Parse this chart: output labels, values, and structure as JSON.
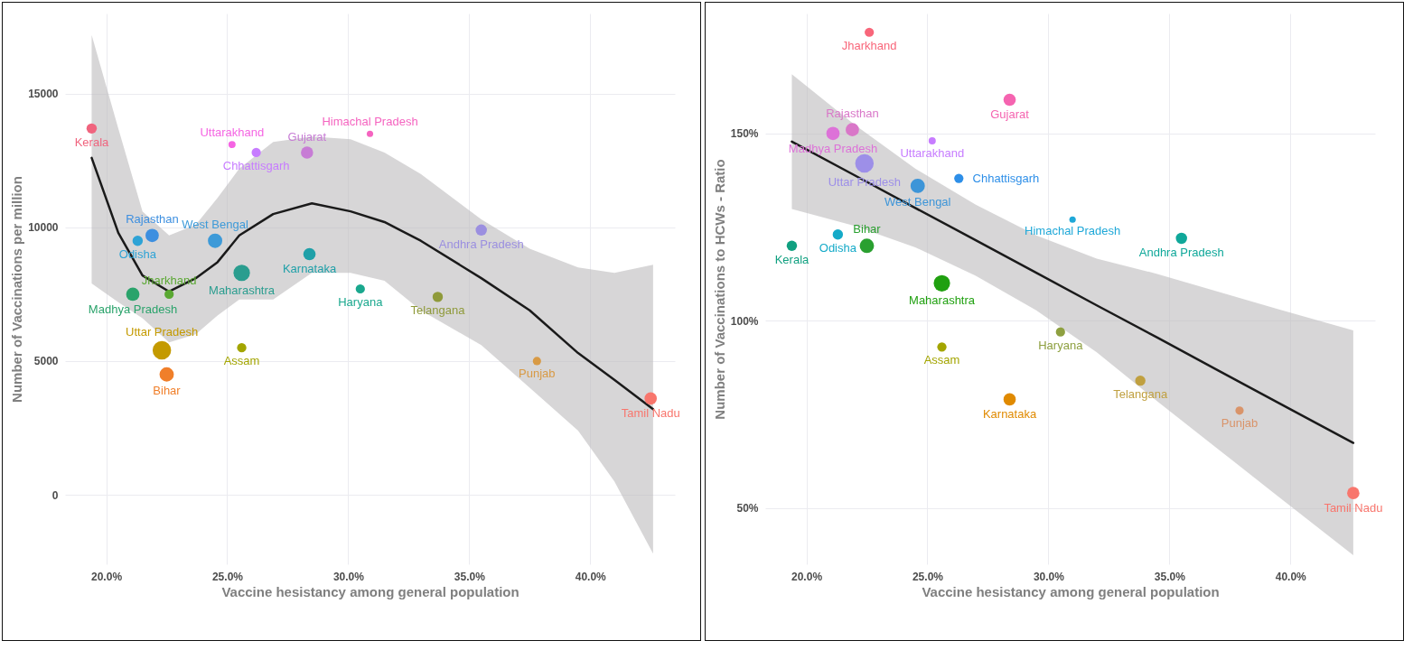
{
  "chart_data": [
    {
      "type": "bubble",
      "xlabel": "Vaccine hesistancy among general population",
      "ylabel": "Number of Vaccinations per million",
      "xlim": [
        18.3,
        43.5
      ],
      "ylim": [
        -2600,
        18000
      ],
      "xticks": [
        {
          "value": 20,
          "label": "20.0%"
        },
        {
          "value": 25,
          "label": "25.0%"
        },
        {
          "value": 30,
          "label": "30.0%"
        },
        {
          "value": 35,
          "label": "35.0%"
        },
        {
          "value": 40,
          "label": "40.0%"
        }
      ],
      "yticks": [
        0,
        5000,
        10000,
        15000
      ],
      "grid": true,
      "marker": "circle",
      "series": [
        {
          "name": "Kerala",
          "color": "#f0647e",
          "x": [
            19.4
          ],
          "values": [
            13700
          ],
          "sizes": [
            0.31
          ]
        },
        {
          "name": "Uttarakhand",
          "color": "#f564e3",
          "x": [
            25.2
          ],
          "values": [
            13100
          ],
          "sizes": [
            0.15
          ]
        },
        {
          "name": "Chhattisgarh",
          "color": "#c77cff",
          "x": [
            26.2
          ],
          "values": [
            12800
          ],
          "sizes": [
            0.25
          ]
        },
        {
          "name": "Gujarat",
          "color": "#c77cd5",
          "x": [
            28.3
          ],
          "values": [
            12800
          ],
          "sizes": [
            0.44
          ]
        },
        {
          "name": "Himachal Pradesh",
          "color": "#f564c0",
          "x": [
            30.9
          ],
          "values": [
            13500
          ],
          "sizes": [
            0.12
          ]
        },
        {
          "name": "Rajasthan",
          "color": "#3d8fe0",
          "x": [
            21.9
          ],
          "values": [
            9700
          ],
          "sizes": [
            0.52
          ]
        },
        {
          "name": "Odisha",
          "color": "#2ea3d6",
          "x": [
            21.3
          ],
          "values": [
            9500
          ],
          "sizes": [
            0.31
          ]
        },
        {
          "name": "West Bengal",
          "color": "#3d9ad8",
          "x": [
            24.5
          ],
          "values": [
            9500
          ],
          "sizes": [
            0.6
          ]
        },
        {
          "name": "Karnataka",
          "color": "#1fa0a8",
          "x": [
            28.4
          ],
          "values": [
            9000
          ],
          "sizes": [
            0.44
          ]
        },
        {
          "name": "Andhra Pradesh",
          "color": "#9b8fe0",
          "x": [
            35.5
          ],
          "values": [
            9900
          ],
          "sizes": [
            0.37
          ]
        },
        {
          "name": "Maharashtra",
          "color": "#2a9d8f",
          "x": [
            25.6
          ],
          "values": [
            8300
          ],
          "sizes": [
            0.79
          ]
        },
        {
          "name": "Madhya Pradesh",
          "color": "#2aa36b",
          "x": [
            21.1
          ],
          "values": [
            7500
          ],
          "sizes": [
            0.52
          ]
        },
        {
          "name": "Jharkhand",
          "color": "#5aa832",
          "x": [
            22.6
          ],
          "values": [
            7500
          ],
          "sizes": [
            0.25
          ]
        },
        {
          "name": "Haryana",
          "color": "#1aa88e",
          "x": [
            30.5
          ],
          "values": [
            7700
          ],
          "sizes": [
            0.25
          ]
        },
        {
          "name": "Telangana",
          "color": "#8f9a3a",
          "x": [
            33.7
          ],
          "values": [
            7400
          ],
          "sizes": [
            0.31
          ]
        },
        {
          "name": "Uttar Pradesh",
          "color": "#c49a00",
          "x": [
            22.3
          ],
          "values": [
            5400
          ],
          "sizes": [
            1
          ]
        },
        {
          "name": "Assam",
          "color": "#a3a500",
          "x": [
            25.6
          ],
          "values": [
            5500
          ],
          "sizes": [
            0.25
          ]
        },
        {
          "name": "Bihar",
          "color": "#f07f2a",
          "x": [
            22.5
          ],
          "values": [
            4500
          ],
          "sizes": [
            0.6
          ]
        },
        {
          "name": "Punjab",
          "color": "#d89a45",
          "x": [
            37.8
          ],
          "values": [
            5000
          ],
          "sizes": [
            0.2
          ]
        },
        {
          "name": "Tamil Nadu",
          "color": "#f8766d",
          "x": [
            42.5
          ],
          "values": [
            3600
          ],
          "sizes": [
            0.44
          ]
        },
        {
          "type": "line",
          "marker": "none",
          "color": "#1a1a1a",
          "x": [
            19.4,
            20.5,
            21.5,
            22.6,
            23.7,
            24.6,
            25.5,
            26.9,
            28.5,
            30.1,
            31.5,
            33.0,
            35.5,
            37.5,
            39.5,
            41,
            42.6
          ],
          "values": [
            12600,
            9800,
            8200,
            7600,
            8100,
            8700,
            9700,
            10500,
            10900,
            10600,
            10200,
            9500,
            8100,
            6900,
            5300,
            4300,
            3200
          ],
          "lower": [
            7900,
            7200,
            6600,
            5700,
            6000,
            6700,
            7300,
            7300,
            8300,
            8300,
            8000,
            6900,
            5600,
            4000,
            2400,
            500,
            -2200
          ],
          "upper": [
            17200,
            13700,
            10600,
            9700,
            10100,
            11100,
            12200,
            13200,
            13400,
            13300,
            12800,
            12000,
            10300,
            9200,
            8500,
            8300,
            8600
          ]
        }
      ]
    },
    {
      "type": "bubble",
      "xlabel": "Vaccine hesistancy among general population",
      "ylabel": "Number of Vaccinations to HCWs - Ratio",
      "xlim": [
        18.3,
        43.5
      ],
      "ylim": [
        35,
        182
      ],
      "xticks": [
        {
          "value": 20,
          "label": "20.0%"
        },
        {
          "value": 25,
          "label": "25.0%"
        },
        {
          "value": 30,
          "label": "30.0%"
        },
        {
          "value": 35,
          "label": "35.0%"
        },
        {
          "value": 40,
          "label": "40.0%"
        }
      ],
      "yticks": [
        {
          "value": 50,
          "label": "50%"
        },
        {
          "value": 100,
          "label": "100%"
        },
        {
          "value": 150,
          "label": "150%"
        }
      ],
      "grid": true,
      "marker": "circle",
      "series": [
        {
          "name": "Jharkhand",
          "color": "#f8667a",
          "x": [
            22.6
          ],
          "values": [
            177
          ],
          "sizes": [
            0.25
          ]
        },
        {
          "name": "Gujarat",
          "color": "#f564b0",
          "x": [
            28.4
          ],
          "values": [
            159
          ],
          "sizes": [
            0.44
          ]
        },
        {
          "name": "Rajasthan",
          "color": "#d977c8",
          "x": [
            21.9
          ],
          "values": [
            151
          ],
          "sizes": [
            0.52
          ]
        },
        {
          "name": "Madhya Pradesh",
          "color": "#dd72d8",
          "x": [
            21.1
          ],
          "values": [
            150
          ],
          "sizes": [
            0.52
          ]
        },
        {
          "name": "Uttarakhand",
          "color": "#c77cff",
          "x": [
            25.2
          ],
          "values": [
            148
          ],
          "sizes": [
            0.15
          ]
        },
        {
          "name": "Uttar Pradesh",
          "color": "#9d8fe8",
          "x": [
            22.4
          ],
          "values": [
            142
          ],
          "sizes": [
            1
          ]
        },
        {
          "name": "Chhattisgarh",
          "color": "#2e8fe8",
          "x": [
            26.3
          ],
          "values": [
            138
          ],
          "sizes": [
            0.25
          ]
        },
        {
          "name": "West Bengal",
          "color": "#3d95d8",
          "x": [
            24.6
          ],
          "values": [
            136
          ],
          "sizes": [
            0.6
          ]
        },
        {
          "name": "Himachal Pradesh",
          "color": "#1fa8d8",
          "x": [
            31.0
          ],
          "values": [
            127
          ],
          "sizes": [
            0.12
          ]
        },
        {
          "name": "Odisha",
          "color": "#14aac8",
          "x": [
            21.3
          ],
          "values": [
            123
          ],
          "sizes": [
            0.31
          ]
        },
        {
          "name": "Andhra Pradesh",
          "color": "#10a89a",
          "x": [
            35.5
          ],
          "values": [
            122
          ],
          "sizes": [
            0.37
          ]
        },
        {
          "name": "Kerala",
          "color": "#10a080",
          "x": [
            19.4
          ],
          "values": [
            120
          ],
          "sizes": [
            0.31
          ]
        },
        {
          "name": "Bihar",
          "color": "#2aa030",
          "x": [
            22.5
          ],
          "values": [
            120
          ],
          "sizes": [
            0.6
          ]
        },
        {
          "name": "Maharashtra",
          "color": "#20a010",
          "x": [
            25.6
          ],
          "values": [
            110
          ],
          "sizes": [
            0.79
          ]
        },
        {
          "name": "Haryana",
          "color": "#8ea040",
          "x": [
            30.5
          ],
          "values": [
            97
          ],
          "sizes": [
            0.25
          ]
        },
        {
          "name": "Assam",
          "color": "#a3a500",
          "x": [
            25.6
          ],
          "values": [
            93
          ],
          "sizes": [
            0.25
          ]
        },
        {
          "name": "Telangana",
          "color": "#c0a040",
          "x": [
            33.8
          ],
          "values": [
            84
          ],
          "sizes": [
            0.31
          ]
        },
        {
          "name": "Karnataka",
          "color": "#e08a00",
          "x": [
            28.4
          ],
          "values": [
            79
          ],
          "sizes": [
            0.44
          ]
        },
        {
          "name": "Punjab",
          "color": "#d9946a",
          "x": [
            37.9
          ],
          "values": [
            76
          ],
          "sizes": [
            0.2
          ]
        },
        {
          "name": "Tamil Nadu",
          "color": "#f8766d",
          "x": [
            42.6
          ],
          "values": [
            54
          ],
          "sizes": [
            0.44
          ]
        },
        {
          "type": "line",
          "marker": "none",
          "color": "#1a1a1a",
          "x": [
            19.4,
            22,
            24.5,
            27,
            29.5,
            32,
            34.5,
            37,
            39.5,
            42.6
          ],
          "values": [
            147.8,
            138.8,
            130.1,
            121.5,
            112.8,
            104.1,
            95.5,
            86.8,
            78.1,
            67.4
          ],
          "lower": [
            129.8,
            125.3,
            119.6,
            112.0,
            102.8,
            91.6,
            78.5,
            65.8,
            53.1,
            37.4
          ],
          "upper": [
            165.8,
            152.3,
            140.6,
            131.0,
            122.8,
            116.6,
            112.5,
            107.8,
            103.1,
            97.4
          ]
        }
      ]
    }
  ]
}
